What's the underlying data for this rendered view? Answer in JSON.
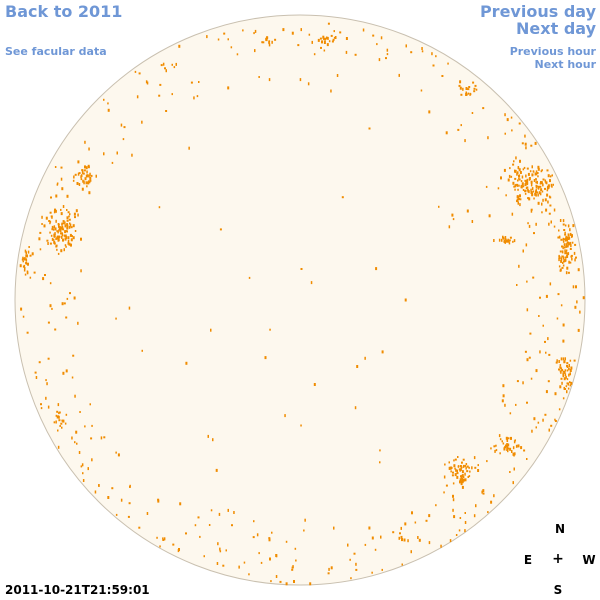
{
  "nav": {
    "back_label": "Back to 2011",
    "facular_label": "See facular data",
    "prev_day_label": "Previous day",
    "next_day_label": "Next day",
    "prev_hour_label": "Previous hour",
    "next_hour_label": "Next hour"
  },
  "compass": {
    "north": "N",
    "south": "S",
    "east": "E",
    "west": "W",
    "center": "+"
  },
  "timestamp": "2011-10-21T21:59:01",
  "colors": {
    "link": "#6f97d6",
    "disk_fill": "#fdf8ee",
    "disk_border": "#c9c0b0",
    "feature": "#f08c00"
  }
}
